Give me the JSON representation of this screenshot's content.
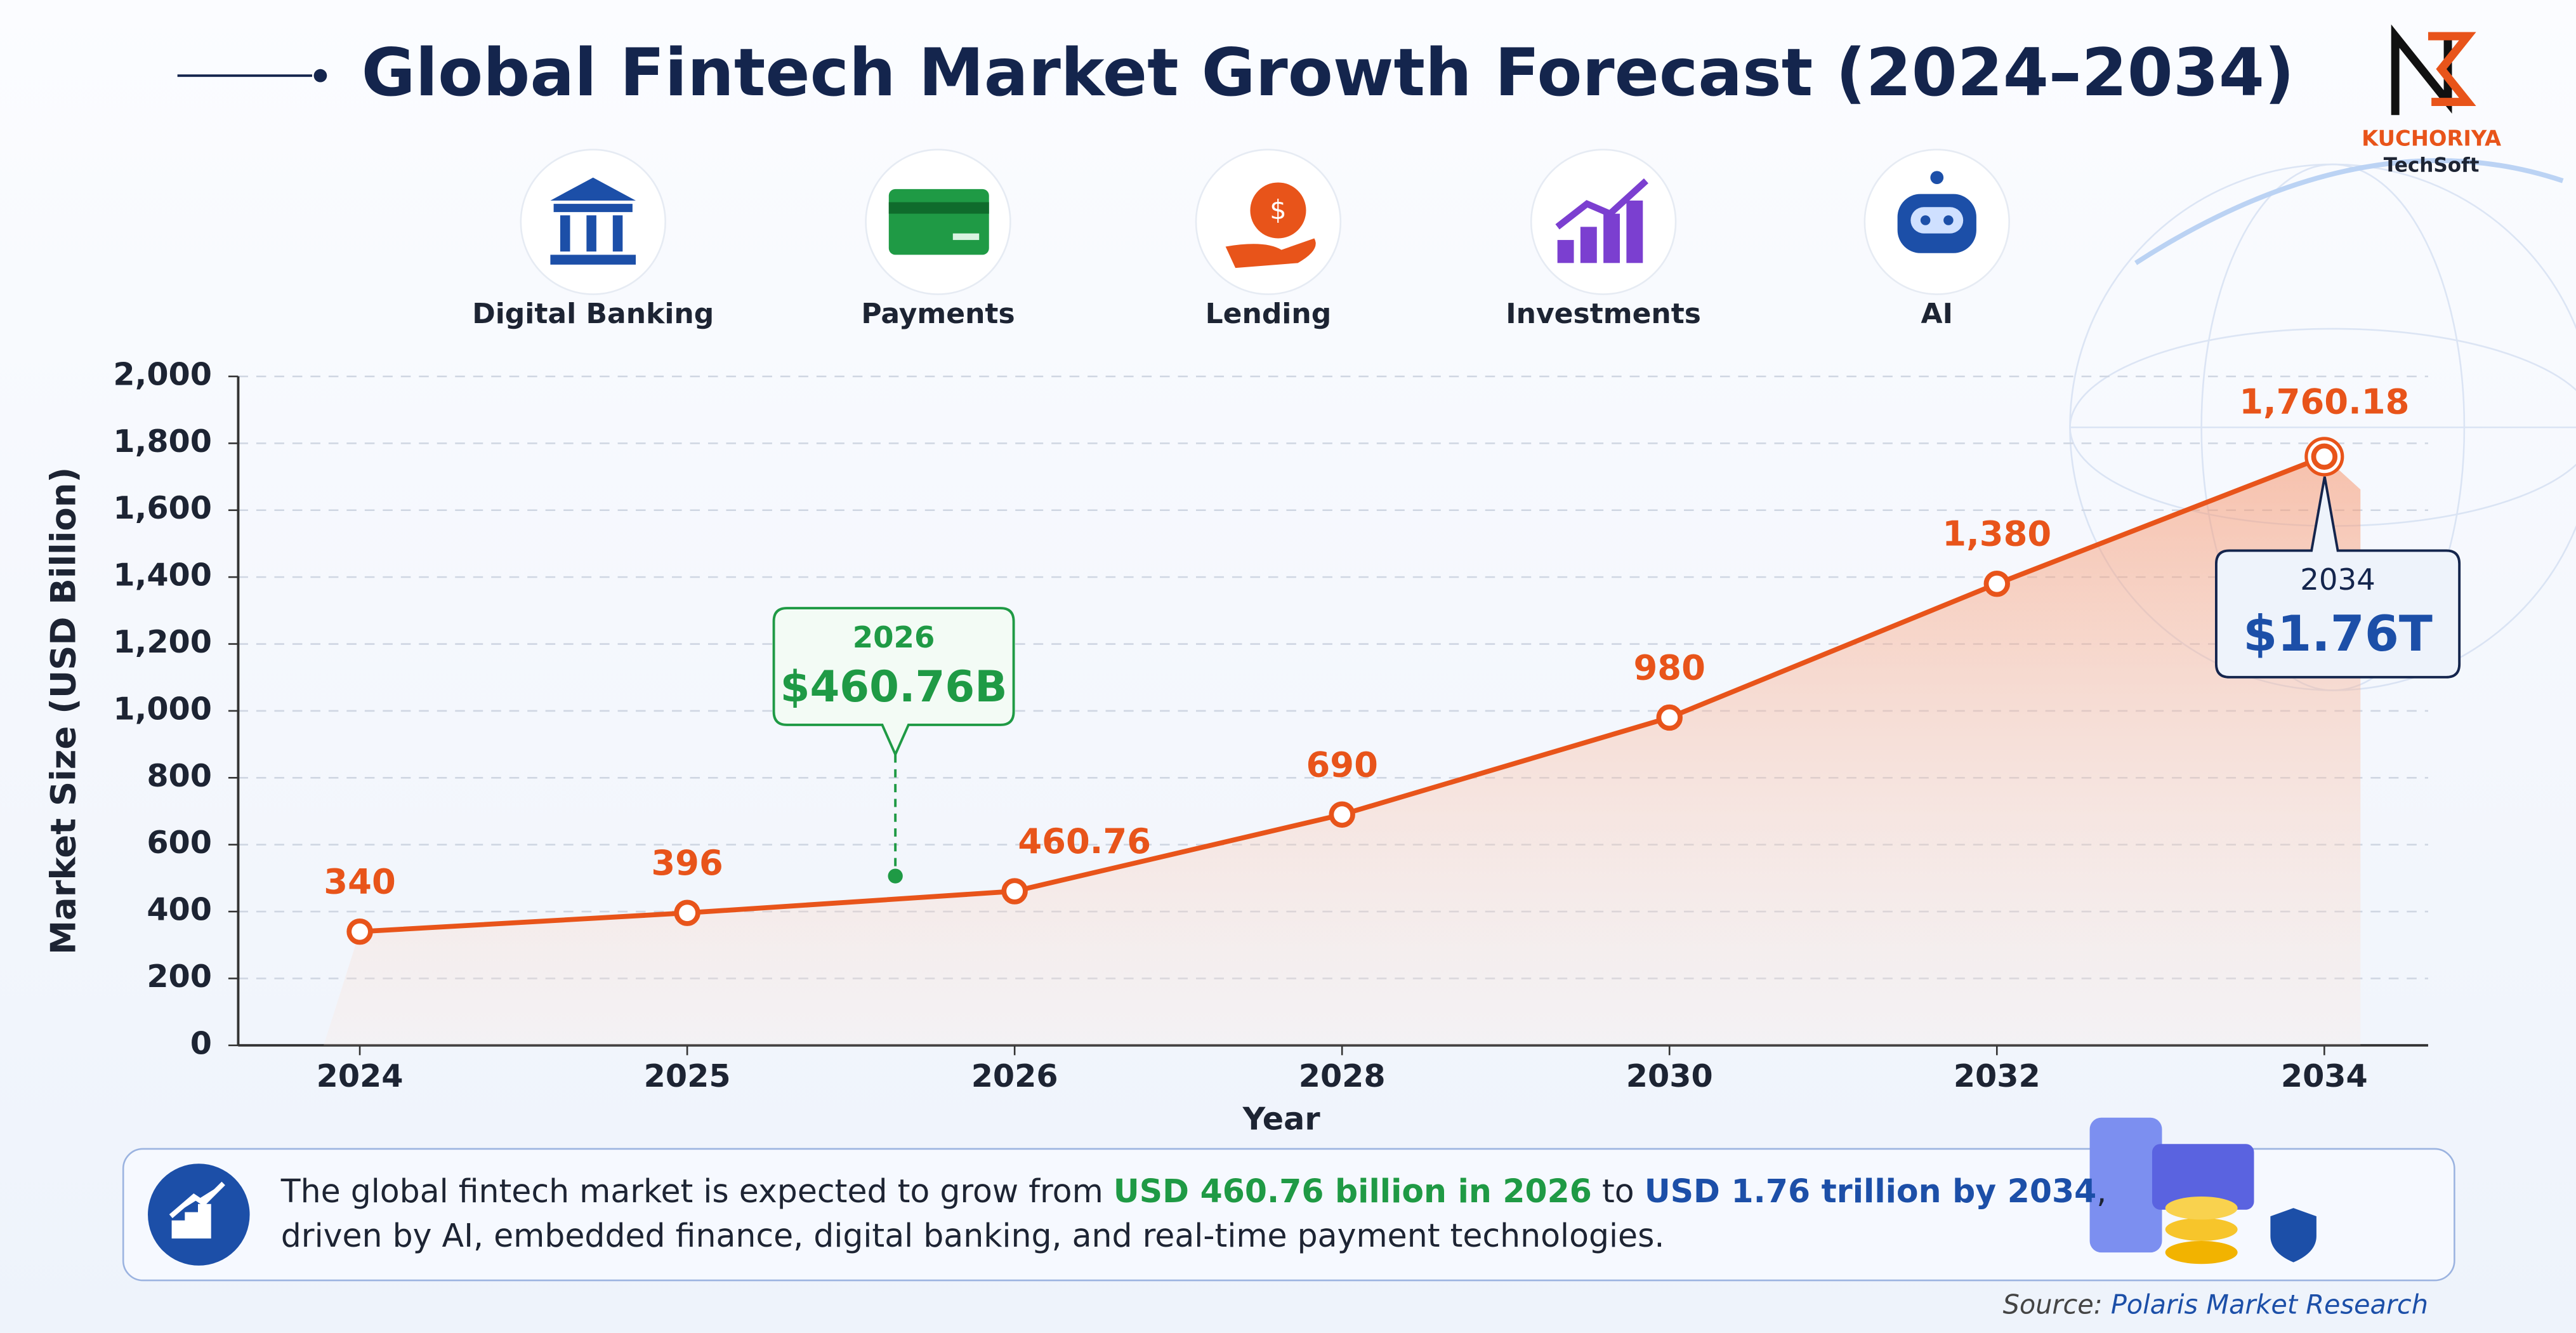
{
  "chart_data": {
    "type": "line",
    "title": "Global Fintech Market Growth Forecast (2024–2034)",
    "brand": {
      "name": "KUCHORIYA",
      "tagline": "TechSoft"
    },
    "segments": [
      "Digital Banking",
      "Payments",
      "Lending",
      "Investments",
      "AI"
    ],
    "y_label": "Market Size (USD Billion)",
    "x_label": "Year",
    "categories": [
      "2024",
      "2025",
      "2026",
      "2028",
      "2030",
      "2032",
      "2034"
    ],
    "values": [
      340,
      396,
      460.76,
      690,
      980,
      1380,
      1760.18
    ],
    "value_labels": [
      "340",
      "396",
      "460.76",
      "690",
      "980",
      "1,380",
      "1,760.18"
    ],
    "color": "#e8541a",
    "ylim": [
      0,
      2000
    ],
    "yticks": [
      0,
      200,
      400,
      600,
      800,
      {
        "value": 1000,
        "label": "1,000"
      },
      {
        "value": 1200,
        "label": "1,200"
      },
      {
        "value": 1400,
        "label": "1,400"
      },
      {
        "value": 1600,
        "label": "1,600"
      },
      {
        "value": 1800,
        "label": "1,800"
      },
      {
        "value": 2000,
        "label": "2,000"
      }
    ],
    "grid": true,
    "annotations": [
      {
        "title": "2026",
        "text": "$460.76B",
        "color": "#1f9a45"
      },
      {
        "title": "2034",
        "text": "$1.76T",
        "color": "#1c4fa8"
      }
    ],
    "summary": [
      [
        {
          "text": "The global fintech market is expected to grow from ",
          "color": "#1d2433"
        },
        {
          "text": "USD 460.76 billion in 2026",
          "color": "#1f9a45"
        },
        {
          "text": " to ",
          "color": "#1d2433"
        },
        {
          "text": "USD 1.76 trillion by 2034",
          "color": "#1c4fa8"
        },
        {
          "text": ",",
          "color": "#1d2433"
        }
      ],
      [
        {
          "text": "driven by AI, embedded finance, digital banking, and real-time payment technologies.",
          "color": "#1d2433"
        }
      ]
    ],
    "source": {
      "prefix": "Source: ",
      "name": "Polaris Market Research"
    }
  }
}
